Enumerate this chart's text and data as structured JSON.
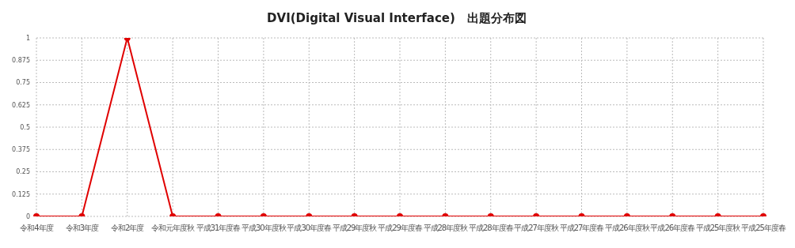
{
  "chart_data": {
    "type": "line",
    "title": "DVI(Digital Visual Interface)　出題分布図",
    "categories": [
      "令和4年度",
      "令和3年度",
      "令和2年度",
      "令和元年度秋",
      "平成31年度春",
      "平成30年度秋",
      "平成30年度春",
      "平成29年度秋",
      "平成29年度春",
      "平成28年度秋",
      "平成28年度春",
      "平成27年度秋",
      "平成27年度春",
      "平成26年度秋",
      "平成26年度春",
      "平成25年度秋",
      "平成25年度春"
    ],
    "series": [
      {
        "color": "#e00000",
        "values": [
          0,
          0,
          1,
          0,
          0,
          0,
          0,
          0,
          0,
          0,
          0,
          0,
          0,
          0,
          0,
          0,
          0
        ]
      }
    ],
    "ylim": [
      0,
      1
    ],
    "yticks": [
      0,
      0.125,
      0.25,
      0.375,
      0.5,
      0.625,
      0.75,
      0.875,
      1
    ],
    "grid": true,
    "marker": "circle",
    "line_style": "solid",
    "legend": false
  }
}
